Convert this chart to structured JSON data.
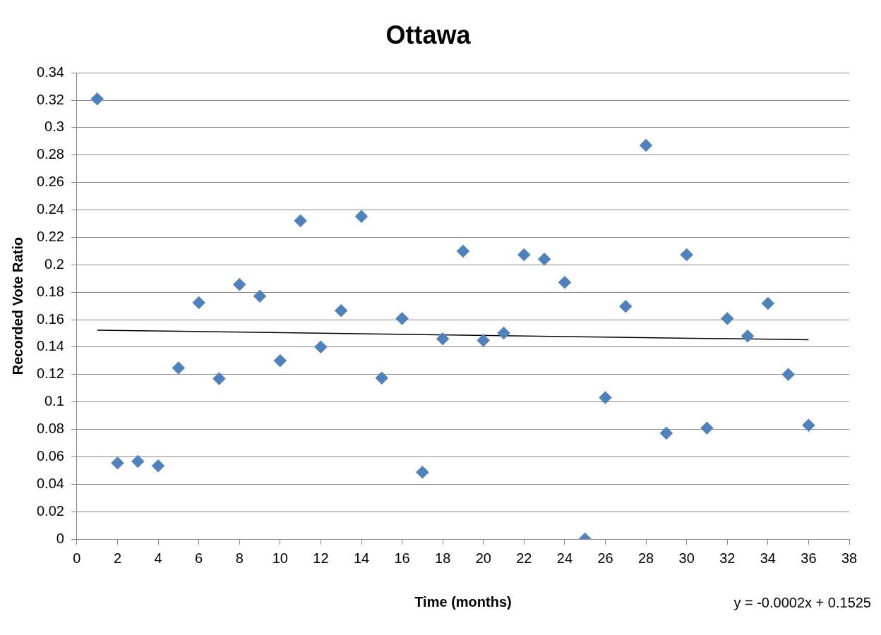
{
  "chart_data": {
    "type": "scatter",
    "title": "Ottawa",
    "xlabel": "Time (months)",
    "ylabel": "Recorded Vote Ratio",
    "annotations": [
      "y = -0.0002x + 0.1525"
    ],
    "x": [
      1,
      2,
      3,
      4,
      5,
      6,
      7,
      8,
      9,
      10,
      11,
      12,
      13,
      14,
      15,
      16,
      17,
      18,
      19,
      20,
      21,
      22,
      23,
      24,
      25,
      26,
      27,
      28,
      29,
      30,
      31,
      32,
      33,
      34,
      35,
      36
    ],
    "series": [
      {
        "type": "scatter",
        "color": "#4f81bd",
        "marker": "diamond",
        "values": [
          0.321,
          0.0555,
          0.0566,
          0.0534,
          0.1248,
          0.1724,
          0.1169,
          0.1856,
          0.1771,
          0.1301,
          0.2321,
          0.1401,
          0.1666,
          0.2353,
          0.1174,
          0.1608,
          0.0487,
          0.146,
          0.2099,
          0.1449,
          0.1502,
          0.2073,
          0.2041,
          0.1872,
          0,
          0.1031,
          0.1697,
          0.2871,
          0.0772,
          0.2073,
          0.0809,
          0.1608,
          0.148,
          0.1719,
          0.12,
          0.083
        ]
      },
      {
        "type": "line",
        "color": "#000000",
        "marker": "none",
        "x": [
          1,
          36
        ],
        "values": [
          0.1523,
          0.1453
        ]
      }
    ],
    "xlim": [
      0,
      38
    ],
    "xticks": [
      0,
      2,
      4,
      6,
      8,
      10,
      12,
      14,
      16,
      18,
      20,
      22,
      24,
      26,
      28,
      30,
      32,
      34,
      36,
      38
    ],
    "ylim": [
      0,
      0.34
    ],
    "yticks": [
      0,
      0.02,
      0.04,
      0.06,
      0.08,
      0.1,
      0.12,
      0.14,
      0.16,
      0.18,
      0.2,
      0.22,
      0.24,
      0.26,
      0.28,
      0.3,
      0.32,
      0.34
    ],
    "grid": "y",
    "legend": false
  }
}
